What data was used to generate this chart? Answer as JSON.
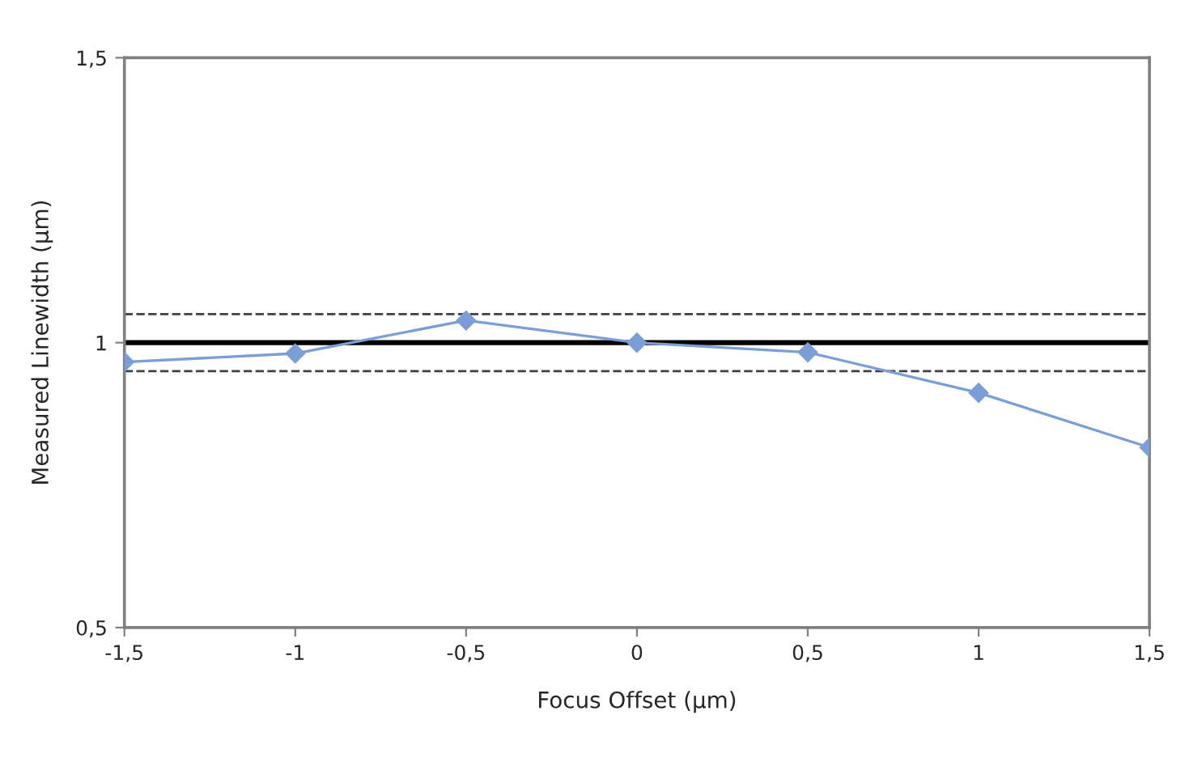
{
  "chart_data": {
    "type": "line",
    "xlabel": "Focus Offset (µm)",
    "ylabel": "Measured Linewidth (µm)",
    "x": [
      -1.5,
      -1,
      -0.5,
      0,
      0.5,
      1,
      1.5
    ],
    "series": [
      {
        "color": "#7b9ed6",
        "values": [
          0.966,
          0.981,
          1.039,
          1.0,
          0.983,
          0.912,
          0.816
        ]
      }
    ],
    "xlim": [
      -1.5,
      1.5
    ],
    "xticks": [
      {
        "value": -1.5,
        "label": "-1,5"
      },
      -1,
      {
        "value": -0.5,
        "label": "-0,5"
      },
      0,
      {
        "value": 0.5,
        "label": "0,5"
      },
      1,
      {
        "value": 1.5,
        "label": "1,5"
      }
    ],
    "ylim": [
      0.5,
      1.5
    ],
    "yticks": [
      {
        "value": 0.5,
        "label": "0,5"
      },
      1,
      {
        "value": 1.5,
        "label": "1,5"
      }
    ],
    "ref_lines": [
      {
        "axis": "y",
        "value": 1,
        "color": "#000000",
        "line_style": "solid"
      },
      {
        "axis": "y",
        "value": 1.05,
        "color": "#404040",
        "line_style": "dashed"
      },
      {
        "axis": "y",
        "value": 0.95,
        "color": "#404040",
        "line_style": "dashed"
      }
    ],
    "marker": "diamond",
    "line_style": "solid",
    "grid": false,
    "legend": false
  }
}
